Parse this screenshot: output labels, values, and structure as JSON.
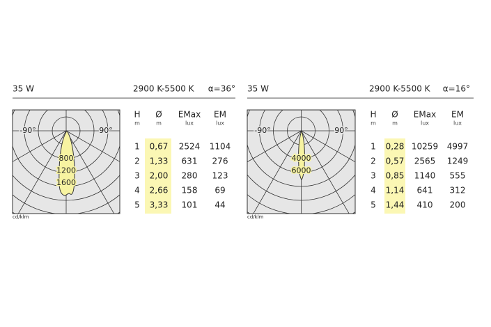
{
  "panels": [
    {
      "power": "35 W",
      "cct": "2900 K-5500 K",
      "angle": "α=36°",
      "diagram": {
        "left_label": "-90°",
        "right_label": "90°",
        "ring_labels": [
          "800",
          "1200",
          "1600"
        ],
        "unit": "cd/klm"
      },
      "table": {
        "headers": [
          [
            "H",
            "m"
          ],
          [
            "Ø",
            "m"
          ],
          [
            "EMax",
            "lux"
          ],
          [
            "EM",
            "lux"
          ]
        ],
        "rows": [
          [
            "1",
            "0,67",
            "2524",
            "1104"
          ],
          [
            "2",
            "1,33",
            "631",
            "276"
          ],
          [
            "3",
            "2,00",
            "280",
            "123"
          ],
          [
            "4",
            "2,66",
            "158",
            "69"
          ],
          [
            "5",
            "3,33",
            "101",
            "44"
          ]
        ]
      }
    },
    {
      "power": "35 W",
      "cct": "2900 K-5500 K",
      "angle": "α=16°",
      "diagram": {
        "left_label": "-90°",
        "right_label": "90°",
        "ring_labels": [
          "4000",
          "6000"
        ],
        "unit": "cd/klm"
      },
      "table": {
        "headers": [
          [
            "H",
            "m"
          ],
          [
            "Ø",
            "m"
          ],
          [
            "EMax",
            "lux"
          ],
          [
            "EM",
            "lux"
          ]
        ],
        "rows": [
          [
            "1",
            "0,28",
            "10259",
            "4997"
          ],
          [
            "2",
            "0,57",
            "2565",
            "1249"
          ],
          [
            "3",
            "0,85",
            "1140",
            "555"
          ],
          [
            "4",
            "1,14",
            "641",
            "312"
          ],
          [
            "5",
            "1,44",
            "410",
            "200"
          ]
        ]
      }
    }
  ]
}
